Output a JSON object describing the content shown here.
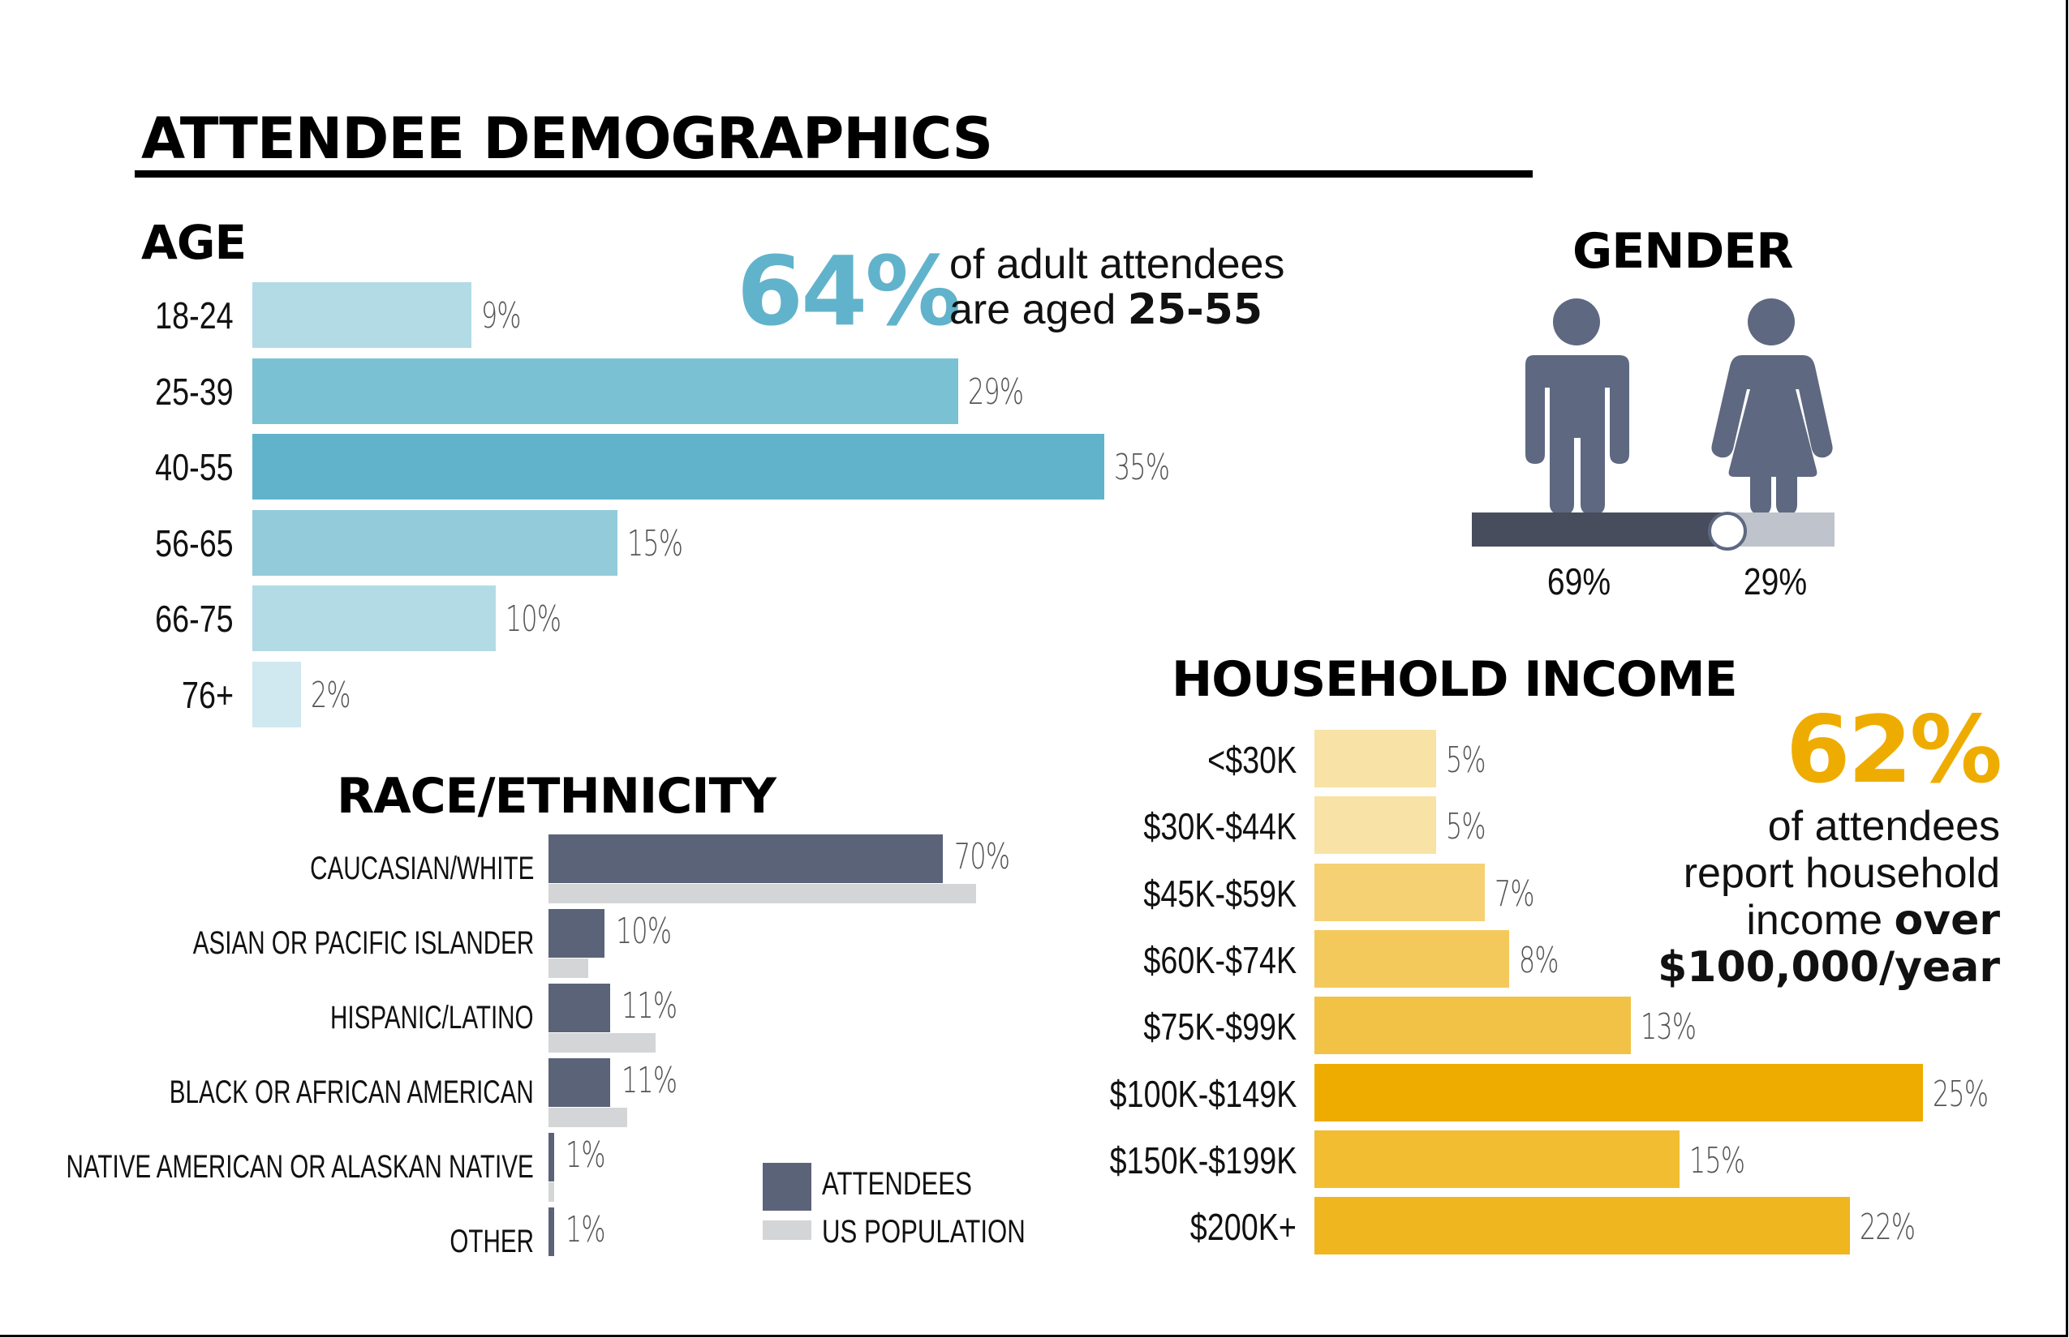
{
  "title": "ATTENDEE DEMOGRAPHICS",
  "sections": {
    "age": {
      "title": "AGE",
      "callout": {
        "value": "64%",
        "line1": "of adult attendees",
        "line2_prefix": "are aged ",
        "line2_bold": "25-55",
        "color": "#61b3cb"
      }
    },
    "gender": {
      "title": "GENDER",
      "male_label": "69%",
      "female_label": "29%",
      "male_icon": "male-person-icon",
      "female_icon": "female-person-icon"
    },
    "race": {
      "title": "RACE/ETHNICITY",
      "legend": [
        {
          "label": "ATTENDEES",
          "color": "#5b6378"
        },
        {
          "label": "US POPULATION",
          "color": "#d4d5d7"
        }
      ]
    },
    "income": {
      "title": "HOUSEHOLD INCOME",
      "callout": {
        "value": "62%",
        "line1": "of attendees",
        "line2": "report household",
        "line3_prefix": "income ",
        "line3_bold": "over",
        "line4_bold": "$100,000/year",
        "color": "#efac00"
      }
    }
  },
  "chart_data": [
    {
      "type": "bar",
      "orientation": "horizontal",
      "title": "AGE",
      "categories": [
        "18-24",
        "25-39",
        "40-55",
        "56-65",
        "66-75",
        "76+"
      ],
      "values": [
        9,
        29,
        35,
        15,
        10,
        2
      ],
      "value_labels": [
        "9%",
        "29%",
        "35%",
        "15%",
        "10%",
        "2%"
      ],
      "colors": [
        "#b2dbe6",
        "#7bc1d4",
        "#61b3cb",
        "#93cbdb",
        "#b2dbe6",
        "#d0e8ef"
      ],
      "unit": "%",
      "xlim": [
        0,
        35
      ]
    },
    {
      "type": "bar",
      "orientation": "horizontal",
      "title": "GENDER",
      "categories": [
        "Male",
        "Female"
      ],
      "values": [
        69,
        29
      ],
      "value_labels": [
        "69%",
        "29%"
      ],
      "colors": [
        "#474d5c",
        "#bfc3cb"
      ],
      "unit": "%"
    },
    {
      "type": "bar",
      "orientation": "horizontal",
      "title": "RACE/ETHNICITY",
      "categories": [
        "CAUCASIAN/WHITE",
        "ASIAN OR PACIFIC ISLANDER",
        "HISPANIC/LATINO",
        "BLACK OR AFRICAN AMERICAN",
        "NATIVE AMERICAN OR ALASKAN NATIVE",
        "OTHER"
      ],
      "series": [
        {
          "name": "ATTENDEES",
          "values": [
            70,
            10,
            11,
            11,
            1,
            1
          ],
          "value_labels": [
            "70%",
            "10%",
            "11%",
            "11%",
            "1%",
            "1%"
          ],
          "color": "#5b6378"
        },
        {
          "name": "US POPULATION",
          "values": [
            76,
            7,
            19,
            14,
            1,
            0
          ],
          "color": "#d4d5d7"
        }
      ],
      "legend": "bottom-right",
      "unit": "%"
    },
    {
      "type": "bar",
      "orientation": "horizontal",
      "title": "HOUSEHOLD INCOME",
      "categories": [
        "<$30K",
        "$30K-$44K",
        "$45K-$59K",
        "$60K-$74K",
        "$75K-$99K",
        "$100K-$149K",
        "$150K-$199K",
        "$200K+"
      ],
      "values": [
        5,
        5,
        7,
        8,
        13,
        25,
        15,
        22
      ],
      "value_labels": [
        "5%",
        "5%",
        "7%",
        "8%",
        "13%",
        "25%",
        "15%",
        "22%"
      ],
      "colors": [
        "#f8e2a5",
        "#f8e2a5",
        "#f5d173",
        "#f4c95c",
        "#f2c246",
        "#efac00",
        "#f2bd30",
        "#f0b620"
      ],
      "unit": "%",
      "xlim": [
        0,
        25
      ]
    }
  ]
}
